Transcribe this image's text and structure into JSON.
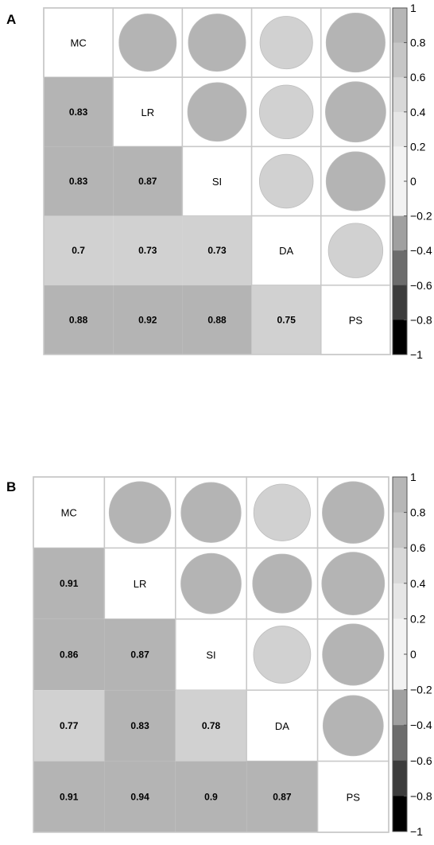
{
  "colorbar": {
    "ticks": [
      "1",
      "0.8",
      "0.6",
      "0.4",
      "0.2",
      "0",
      "−0.2",
      "−0.4",
      "−0.6",
      "−0.8",
      "−1"
    ],
    "range": [
      -1,
      1
    ]
  },
  "colors": {
    "strong": "#b4b4b4",
    "moderate": "#d1d1d1",
    "grid_line": "#c8c8c8"
  },
  "chart_data": [
    {
      "type": "heatmap",
      "panel_label": "A",
      "variables": [
        "MC",
        "LR",
        "SI",
        "DA",
        "PS"
      ],
      "lower_labels": [
        [],
        [
          "0.83"
        ],
        [
          "0.83",
          "0.87"
        ],
        [
          "0.7",
          "0.73",
          "0.73"
        ],
        [
          "0.88",
          "0.92",
          "0.88",
          "0.75"
        ]
      ],
      "matrix": [
        [
          1,
          0.83,
          0.83,
          0.7,
          0.88
        ],
        [
          0.83,
          1,
          0.87,
          0.73,
          0.92
        ],
        [
          0.83,
          0.87,
          1,
          0.73,
          0.88
        ],
        [
          0.7,
          0.73,
          0.73,
          1,
          0.75
        ],
        [
          0.88,
          0.92,
          0.88,
          0.75,
          1
        ]
      ],
      "colorbar_range": [
        -1,
        1
      ]
    },
    {
      "type": "heatmap",
      "panel_label": "B",
      "variables": [
        "MC",
        "LR",
        "SI",
        "DA",
        "PS"
      ],
      "lower_labels": [
        [],
        [
          "0.91"
        ],
        [
          "0.86",
          "0.87"
        ],
        [
          "0.77",
          "0.83",
          "0.78"
        ],
        [
          "0.91",
          "0.94",
          "0.9",
          "0.87"
        ]
      ],
      "matrix": [
        [
          1,
          0.91,
          0.86,
          0.77,
          0.91
        ],
        [
          0.91,
          1,
          0.87,
          0.83,
          0.94
        ],
        [
          0.86,
          0.87,
          1,
          0.78,
          0.9
        ],
        [
          0.77,
          0.83,
          0.78,
          1,
          0.87
        ],
        [
          0.91,
          0.94,
          0.9,
          0.87,
          1
        ]
      ],
      "colorbar_range": [
        -1,
        1
      ]
    }
  ]
}
